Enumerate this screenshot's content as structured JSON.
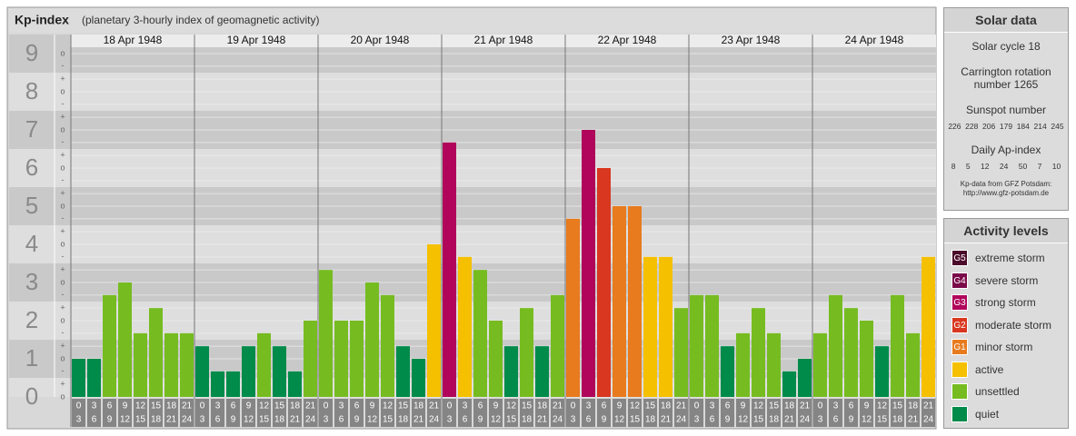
{
  "chart_data": {
    "type": "bar",
    "title": "Kp-index",
    "subtitle": "(planetary 3-hourly index of geomagnetic activity)",
    "ylim": [
      0,
      9.5
    ],
    "yticks": [
      0,
      1,
      2,
      3,
      4,
      5,
      6,
      7,
      8,
      9
    ],
    "yminor": [
      {
        "value": 0,
        "label": "o"
      },
      {
        "value": 0.33,
        "label": "+"
      },
      {
        "value": 0.67,
        "label": "-"
      },
      {
        "value": 1,
        "label": "o"
      },
      {
        "value": 1.33,
        "label": "+"
      },
      {
        "value": 1.67,
        "label": "-"
      },
      {
        "value": 2,
        "label": "o"
      },
      {
        "value": 2.33,
        "label": "+"
      },
      {
        "value": 2.67,
        "label": "-"
      },
      {
        "value": 3,
        "label": "o"
      },
      {
        "value": 3.33,
        "label": "+"
      },
      {
        "value": 3.67,
        "label": "-"
      },
      {
        "value": 4,
        "label": "o"
      },
      {
        "value": 4.33,
        "label": "+"
      },
      {
        "value": 4.67,
        "label": "-"
      },
      {
        "value": 5,
        "label": "o"
      },
      {
        "value": 5.33,
        "label": "+"
      },
      {
        "value": 5.67,
        "label": "-"
      },
      {
        "value": 6,
        "label": "o"
      },
      {
        "value": 6.33,
        "label": "+"
      },
      {
        "value": 6.67,
        "label": "-"
      },
      {
        "value": 7,
        "label": "o"
      },
      {
        "value": 7.33,
        "label": "+"
      },
      {
        "value": 7.67,
        "label": "-"
      },
      {
        "value": 8,
        "label": "o"
      },
      {
        "value": 8.33,
        "label": "+"
      },
      {
        "value": 8.67,
        "label": "-"
      },
      {
        "value": 9,
        "label": "o"
      }
    ],
    "hours": [
      {
        "from": "0",
        "to": "3"
      },
      {
        "from": "3",
        "to": "6"
      },
      {
        "from": "6",
        "to": "9"
      },
      {
        "from": "9",
        "to": "12"
      },
      {
        "from": "12",
        "to": "15"
      },
      {
        "from": "15",
        "to": "18"
      },
      {
        "from": "18",
        "to": "21"
      },
      {
        "from": "21",
        "to": "24"
      }
    ],
    "days": [
      {
        "date": "18 Apr 1948",
        "values": [
          1,
          1,
          2.67,
          3,
          1.67,
          2.33,
          1.67,
          1.67
        ],
        "colors": [
          "#008b4a",
          "#008b4a",
          "#76bc21",
          "#76bc21",
          "#76bc21",
          "#76bc21",
          "#76bc21",
          "#76bc21"
        ]
      },
      {
        "date": "19 Apr 1948",
        "values": [
          1.33,
          0.67,
          0.67,
          1.33,
          1.67,
          1.33,
          0.67,
          2
        ],
        "colors": [
          "#008b4a",
          "#008b4a",
          "#008b4a",
          "#008b4a",
          "#76bc21",
          "#008b4a",
          "#008b4a",
          "#76bc21"
        ]
      },
      {
        "date": "20 Apr 1948",
        "values": [
          3.33,
          2,
          2,
          3,
          2.67,
          1.33,
          1,
          4
        ],
        "colors": [
          "#76bc21",
          "#76bc21",
          "#76bc21",
          "#76bc21",
          "#76bc21",
          "#008b4a",
          "#008b4a",
          "#f5c000"
        ]
      },
      {
        "date": "21 Apr 1948",
        "values": [
          6.67,
          3.67,
          3.33,
          2,
          1.33,
          2.33,
          1.33,
          2.67
        ],
        "colors": [
          "#b0055a",
          "#f5c000",
          "#76bc21",
          "#76bc21",
          "#008b4a",
          "#76bc21",
          "#008b4a",
          "#76bc21"
        ]
      },
      {
        "date": "22 Apr 1948",
        "values": [
          4.67,
          7,
          6,
          5,
          5,
          3.67,
          3.67,
          2.33
        ],
        "colors": [
          "#e77b1e",
          "#b0055a",
          "#d9371f",
          "#e77b1e",
          "#e77b1e",
          "#f5c000",
          "#f5c000",
          "#76bc21"
        ]
      },
      {
        "date": "23 Apr 1948",
        "values": [
          2.67,
          2.67,
          1.33,
          1.67,
          2.33,
          1.67,
          0.67,
          1
        ],
        "colors": [
          "#76bc21",
          "#76bc21",
          "#008b4a",
          "#76bc21",
          "#76bc21",
          "#76bc21",
          "#008b4a",
          "#008b4a"
        ]
      },
      {
        "date": "24 Apr 1948",
        "values": [
          1.67,
          2.67,
          2.33,
          2,
          1.33,
          2.67,
          1.67,
          3.67
        ],
        "colors": [
          "#76bc21",
          "#76bc21",
          "#76bc21",
          "#76bc21",
          "#008b4a",
          "#76bc21",
          "#76bc21",
          "#f5c000"
        ]
      }
    ]
  },
  "solar_panel": {
    "title": "Solar data",
    "cycle": "Solar cycle 18",
    "carrington": "Carrington rotation number 1265",
    "sunspot_title": "Sunspot number",
    "sunspots": [
      226,
      228,
      206,
      179,
      184,
      214,
      245
    ],
    "ap_title": "Daily Ap-index",
    "ap": [
      8,
      5,
      12,
      24,
      50,
      7,
      10
    ],
    "source": "Kp-data from GFZ Potsdam:",
    "url": "http://www.gfz-potsdam.de"
  },
  "activity_panel": {
    "title": "Activity levels",
    "levels": [
      {
        "badge": "G5",
        "name": "extreme storm",
        "color": "#4b0a2a"
      },
      {
        "badge": "G4",
        "name": "severe storm",
        "color": "#7a0a4a"
      },
      {
        "badge": "G3",
        "name": "strong storm",
        "color": "#b0055a"
      },
      {
        "badge": "G2",
        "name": "moderate storm",
        "color": "#d9371f"
      },
      {
        "badge": "G1",
        "name": "minor storm",
        "color": "#e77b1e"
      },
      {
        "name": "active",
        "color": "#f5c000"
      },
      {
        "name": "unsettled",
        "color": "#76bc21"
      },
      {
        "name": "quiet",
        "color": "#008b4a"
      }
    ]
  }
}
